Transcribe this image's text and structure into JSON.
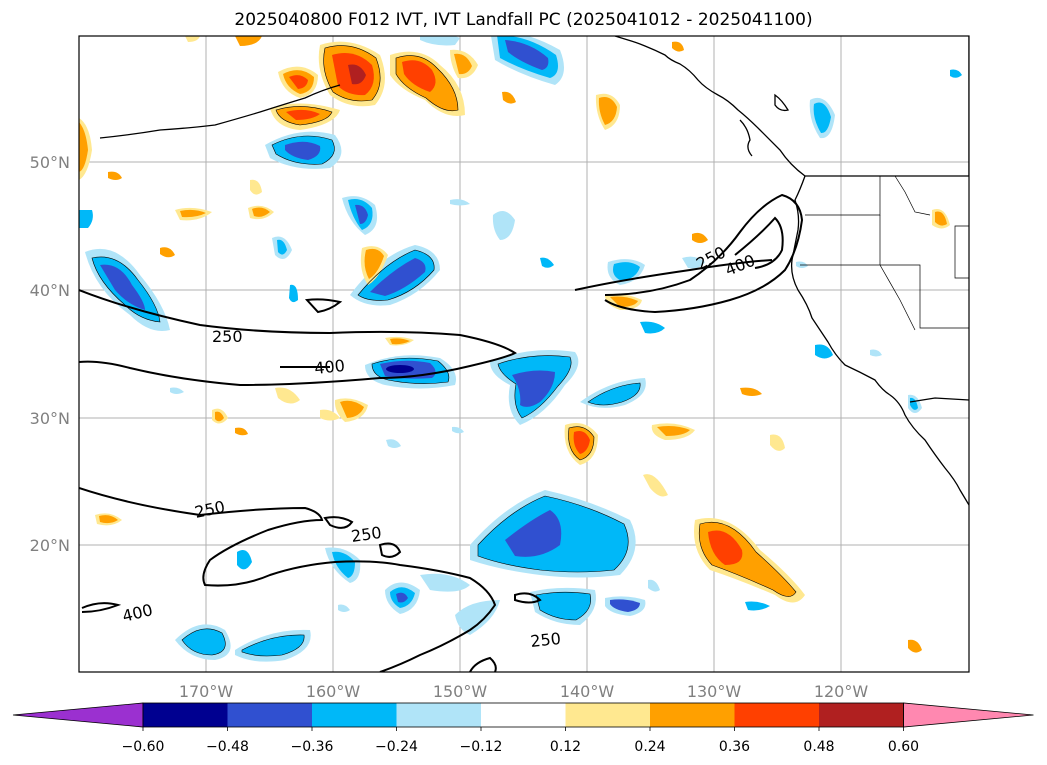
{
  "title": "2025040800 F012 IVT, IVT Landfall PC (2025041012 - 2025041100)",
  "lon_labels": [
    "170°W",
    "160°W",
    "150°W",
    "140°W",
    "130°W",
    "120°W"
  ],
  "lat_labels": [
    "50°N",
    "40°N",
    "30°N",
    "20°N"
  ],
  "contour_labels": [
    "250",
    "400",
    "250",
    "400",
    "250",
    "250",
    "400",
    "250"
  ],
  "colorbar": {
    "colors": [
      "#9b30d0",
      "#000090",
      "#3050d0",
      "#00b8f8",
      "#b0e4f8",
      "#ffffff",
      "#ffe890",
      "#ffa000",
      "#ff4000",
      "#b02020",
      "#ff88b0"
    ],
    "tick_labels": [
      "−0.60",
      "−0.48",
      "−0.36",
      "−0.24",
      "−0.12",
      "0.12",
      "0.24",
      "0.36",
      "0.48",
      "0.60"
    ]
  }
}
